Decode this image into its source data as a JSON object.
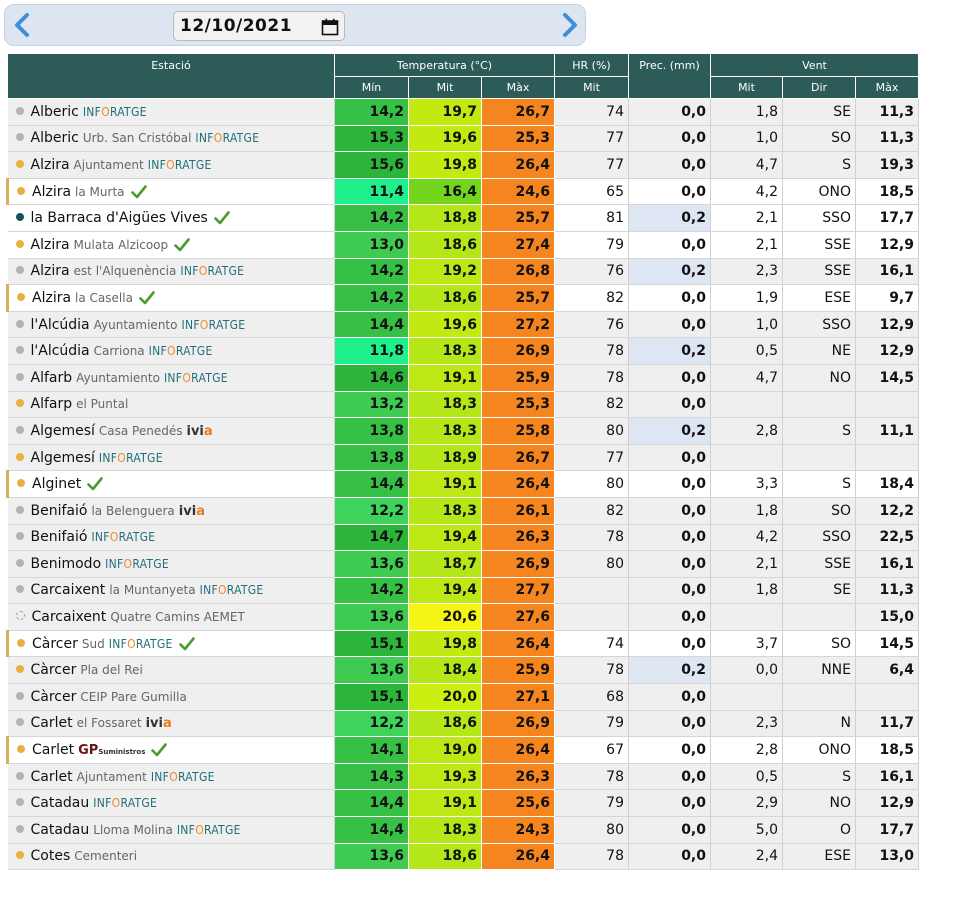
{
  "date_bar": {
    "date": "12/10/2021"
  },
  "headers": {
    "station": "Estació",
    "temperature": "Temperatura (°C)",
    "hr": "HR (%)",
    "prec": "Prec. (mm)",
    "wind": "Vent",
    "sub": {
      "t_min": "Mín",
      "t_mit": "Mit",
      "t_max": "Màx",
      "hr_mit": "Mit",
      "w_mit": "Mit",
      "w_dir": "Dir",
      "w_max": "Màx"
    }
  },
  "colors": {
    "header_bg": "#2d5b57",
    "max_temp": "#f5861f",
    "rain_cell": "#dfe6f3",
    "dot_gray": "#b3b3b3",
    "dot_orange": "#eab043",
    "dot_teal": "#17545a"
  },
  "rows": [
    {
      "station": "Alberic",
      "sub": "",
      "logo": "inforatge",
      "dot": "gray",
      "check": false,
      "hl": false,
      "bg": "gray",
      "tmin": "14,2",
      "tmit": "19,7",
      "tmax": "26,7",
      "hr": "74",
      "prec": "0,0",
      "rain": false,
      "wmit": "1,8",
      "wdir": "SE",
      "wmax": "11,3",
      "minColor": "#36c046",
      "mitColor": "#c2ea10"
    },
    {
      "station": "Alberic",
      "sub": "Urb. San Cristóbal",
      "logo": "inforatge",
      "dot": "gray",
      "check": false,
      "hl": false,
      "bg": "gray",
      "tmin": "15,3",
      "tmit": "19,6",
      "tmax": "25,3",
      "hr": "77",
      "prec": "0,0",
      "rain": false,
      "wmit": "1,0",
      "wdir": "SO",
      "wmax": "11,3",
      "minColor": "#2bb63b",
      "mitColor": "#c2ea10"
    },
    {
      "station": "Alzira",
      "sub": "Ajuntament",
      "logo": "inforatge",
      "dot": "orange",
      "check": false,
      "hl": false,
      "bg": "gray",
      "tmin": "15,6",
      "tmit": "19,8",
      "tmax": "26,4",
      "hr": "77",
      "prec": "0,0",
      "rain": false,
      "wmit": "4,7",
      "wdir": "S",
      "wmax": "19,3",
      "minColor": "#2bb63b",
      "mitColor": "#c2ea10"
    },
    {
      "station": "Alzira",
      "sub": "la Murta",
      "logo": "",
      "dot": "orange",
      "check": true,
      "hl": true,
      "bg": "white",
      "tmin": "11,4",
      "tmit": "16,4",
      "tmax": "24,6",
      "hr": "65",
      "prec": "0,0",
      "rain": false,
      "wmit": "4,2",
      "wdir": "ONO",
      "wmax": "18,5",
      "minColor": "#1ef08c",
      "mitColor": "#74d51d"
    },
    {
      "station": "la Barraca d'Aigües Vives",
      "sub": "",
      "logo": "",
      "dot": "teal",
      "check": true,
      "hl": false,
      "bg": "white",
      "tmin": "14,2",
      "tmit": "18,8",
      "tmax": "25,7",
      "hr": "81",
      "prec": "0,2",
      "rain": true,
      "wmit": "2,1",
      "wdir": "SSO",
      "wmax": "17,7",
      "minColor": "#36c046",
      "mitColor": "#b5e617"
    },
    {
      "station": "Alzira",
      "sub": "Mulata Alzicoop",
      "logo": "",
      "dot": "orange",
      "check": true,
      "hl": false,
      "bg": "white",
      "tmin": "13,0",
      "tmit": "18,6",
      "tmax": "27,4",
      "hr": "79",
      "prec": "0,0",
      "rain": false,
      "wmit": "2,1",
      "wdir": "SSE",
      "wmax": "12,9",
      "minColor": "#3fca51",
      "mitColor": "#b5e617"
    },
    {
      "station": "Alzira",
      "sub": "est l'Alquenència",
      "logo": "inforatge",
      "dot": "gray",
      "check": false,
      "hl": false,
      "bg": "gray",
      "tmin": "14,2",
      "tmit": "19,2",
      "tmax": "26,8",
      "hr": "76",
      "prec": "0,2",
      "rain": true,
      "wmit": "2,3",
      "wdir": "SSE",
      "wmax": "16,1",
      "minColor": "#36c046",
      "mitColor": "#bde814"
    },
    {
      "station": "Alzira",
      "sub": "la Casella",
      "logo": "",
      "dot": "orange",
      "check": true,
      "hl": true,
      "bg": "white",
      "tmin": "14,2",
      "tmit": "18,6",
      "tmax": "25,7",
      "hr": "82",
      "prec": "0,0",
      "rain": false,
      "wmit": "1,9",
      "wdir": "ESE",
      "wmax": "9,7",
      "minColor": "#36c046",
      "mitColor": "#b5e617"
    },
    {
      "station": "l'Alcúdia",
      "sub": "Ayuntamiento",
      "logo": "inforatge",
      "dot": "gray",
      "check": false,
      "hl": false,
      "bg": "gray",
      "tmin": "14,4",
      "tmit": "19,6",
      "tmax": "27,2",
      "hr": "76",
      "prec": "0,0",
      "rain": false,
      "wmit": "1,0",
      "wdir": "SSO",
      "wmax": "12,9",
      "minColor": "#36c046",
      "mitColor": "#c2ea10"
    },
    {
      "station": "l'Alcúdia",
      "sub": "Carriona",
      "logo": "inforatge",
      "dot": "gray",
      "check": false,
      "hl": false,
      "bg": "gray",
      "tmin": "11,8",
      "tmit": "18,3",
      "tmax": "26,9",
      "hr": "78",
      "prec": "0,2",
      "rain": true,
      "wmit": "0,5",
      "wdir": "NE",
      "wmax": "12,9",
      "minColor": "#1ef08c",
      "mitColor": "#b5e617"
    },
    {
      "station": "Alfarb",
      "sub": "Ayuntamiento",
      "logo": "inforatge",
      "dot": "gray",
      "check": false,
      "hl": false,
      "bg": "gray",
      "tmin": "14,6",
      "tmit": "19,1",
      "tmax": "25,9",
      "hr": "78",
      "prec": "0,0",
      "rain": false,
      "wmit": "4,7",
      "wdir": "NO",
      "wmax": "14,5",
      "minColor": "#2bb63b",
      "mitColor": "#bde814"
    },
    {
      "station": "Alfarp",
      "sub": "el Puntal",
      "logo": "",
      "dot": "orange",
      "check": false,
      "hl": false,
      "bg": "gray",
      "tmin": "13,2",
      "tmit": "18,3",
      "tmax": "25,3",
      "hr": "82",
      "prec": "0,0",
      "rain": false,
      "wmit": "",
      "wdir": "",
      "wmax": "",
      "minColor": "#3fca51",
      "mitColor": "#b5e617"
    },
    {
      "station": "Algemesí",
      "sub": "Casa Penedés",
      "logo": "ivia",
      "dot": "gray",
      "check": false,
      "hl": false,
      "bg": "gray",
      "tmin": "13,8",
      "tmit": "18,3",
      "tmax": "25,8",
      "hr": "80",
      "prec": "0,2",
      "rain": true,
      "wmit": "2,8",
      "wdir": "S",
      "wmax": "11,1",
      "minColor": "#36c046",
      "mitColor": "#b5e617"
    },
    {
      "station": "Algemesí",
      "sub": "",
      "logo": "inforatge",
      "dot": "orange",
      "check": false,
      "hl": false,
      "bg": "gray",
      "tmin": "13,8",
      "tmit": "18,9",
      "tmax": "26,7",
      "hr": "77",
      "prec": "0,0",
      "rain": false,
      "wmit": "",
      "wdir": "",
      "wmax": "",
      "minColor": "#36c046",
      "mitColor": "#b5e617"
    },
    {
      "station": "Alginet",
      "sub": "",
      "logo": "",
      "dot": "orange",
      "check": true,
      "hl": true,
      "bg": "white",
      "tmin": "14,4",
      "tmit": "19,1",
      "tmax": "26,4",
      "hr": "80",
      "prec": "0,0",
      "rain": false,
      "wmit": "3,3",
      "wdir": "S",
      "wmax": "18,4",
      "minColor": "#36c046",
      "mitColor": "#bde814"
    },
    {
      "station": "Benifaió",
      "sub": "la Belenguera",
      "logo": "ivia",
      "dot": "gray",
      "check": false,
      "hl": false,
      "bg": "gray",
      "tmin": "12,2",
      "tmit": "18,3",
      "tmax": "26,1",
      "hr": "82",
      "prec": "0,0",
      "rain": false,
      "wmit": "1,8",
      "wdir": "SO",
      "wmax": "12,2",
      "minColor": "#3fd25c",
      "mitColor": "#b5e617"
    },
    {
      "station": "Benifaió",
      "sub": "",
      "logo": "inforatge",
      "dot": "gray",
      "check": false,
      "hl": false,
      "bg": "gray",
      "tmin": "14,7",
      "tmit": "19,4",
      "tmax": "26,3",
      "hr": "78",
      "prec": "0,0",
      "rain": false,
      "wmit": "4,2",
      "wdir": "SSO",
      "wmax": "22,5",
      "minColor": "#2bb63b",
      "mitColor": "#bde814"
    },
    {
      "station": "Benimodo",
      "sub": "",
      "logo": "inforatge",
      "dot": "gray",
      "check": false,
      "hl": false,
      "bg": "gray",
      "tmin": "13,6",
      "tmit": "18,7",
      "tmax": "26,9",
      "hr": "80",
      "prec": "0,0",
      "rain": false,
      "wmit": "2,1",
      "wdir": "SSE",
      "wmax": "16,1",
      "minColor": "#3fca51",
      "mitColor": "#b5e617"
    },
    {
      "station": "Carcaixent",
      "sub": "la Muntanyeta",
      "logo": "inforatge",
      "dot": "gray",
      "check": false,
      "hl": false,
      "bg": "gray",
      "tmin": "14,2",
      "tmit": "19,4",
      "tmax": "27,7",
      "hr": "",
      "prec": "0,0",
      "rain": false,
      "wmit": "1,8",
      "wdir": "SE",
      "wmax": "11,3",
      "minColor": "#36c046",
      "mitColor": "#bde814"
    },
    {
      "station": "Carcaixent",
      "sub": "Quatre Camins AEMET",
      "logo": "",
      "dot": "hollow",
      "check": false,
      "hl": false,
      "bg": "gray",
      "tmin": "13,6",
      "tmit": "20,6",
      "tmax": "27,6",
      "hr": "",
      "prec": "0,0",
      "rain": false,
      "wmit": "",
      "wdir": "",
      "wmax": "15,0",
      "minColor": "#3fca51",
      "mitColor": "#f4f415"
    },
    {
      "station": "Càrcer",
      "sub": "Sud",
      "logo": "inforatge",
      "dot": "orange",
      "check": true,
      "hl": true,
      "bg": "white",
      "tmin": "15,1",
      "tmit": "19,8",
      "tmax": "26,4",
      "hr": "74",
      "prec": "0,0",
      "rain": false,
      "wmit": "3,7",
      "wdir": "SO",
      "wmax": "14,5",
      "minColor": "#2bb63b",
      "mitColor": "#c2ea10"
    },
    {
      "station": "Càrcer",
      "sub": "Pla del Rei",
      "logo": "",
      "dot": "orange",
      "check": false,
      "hl": false,
      "bg": "gray",
      "tmin": "13,6",
      "tmit": "18,4",
      "tmax": "25,9",
      "hr": "78",
      "prec": "0,2",
      "rain": true,
      "wmit": "0,0",
      "wdir": "NNE",
      "wmax": "6,4",
      "minColor": "#3fca51",
      "mitColor": "#b5e617"
    },
    {
      "station": "Càrcer",
      "sub": "CEIP Pare Gumilla",
      "logo": "",
      "dot": "gray",
      "check": false,
      "hl": false,
      "bg": "gray",
      "tmin": "15,1",
      "tmit": "20,0",
      "tmax": "27,1",
      "hr": "68",
      "prec": "0,0",
      "rain": false,
      "wmit": "",
      "wdir": "",
      "wmax": "",
      "minColor": "#2bb63b",
      "mitColor": "#ccee10"
    },
    {
      "station": "Carlet",
      "sub": "el Fossaret",
      "logo": "ivia",
      "dot": "gray",
      "check": false,
      "hl": false,
      "bg": "gray",
      "tmin": "12,2",
      "tmit": "18,6",
      "tmax": "26,9",
      "hr": "79",
      "prec": "0,0",
      "rain": false,
      "wmit": "2,3",
      "wdir": "N",
      "wmax": "11,7",
      "minColor": "#3fd25c",
      "mitColor": "#b5e617"
    },
    {
      "station": "Carlet",
      "sub": "",
      "logo": "gp",
      "dot": "orange",
      "check": true,
      "hl": true,
      "bg": "white",
      "tmin": "14,1",
      "tmit": "19,0",
      "tmax": "26,4",
      "hr": "67",
      "prec": "0,0",
      "rain": false,
      "wmit": "2,8",
      "wdir": "ONO",
      "wmax": "18,5",
      "minColor": "#36c046",
      "mitColor": "#bde814"
    },
    {
      "station": "Carlet",
      "sub": "Ajuntament",
      "logo": "inforatge",
      "dot": "gray",
      "check": false,
      "hl": false,
      "bg": "gray",
      "tmin": "14,3",
      "tmit": "19,3",
      "tmax": "26,3",
      "hr": "78",
      "prec": "0,0",
      "rain": false,
      "wmit": "0,5",
      "wdir": "S",
      "wmax": "16,1",
      "minColor": "#36c046",
      "mitColor": "#bde814"
    },
    {
      "station": "Catadau",
      "sub": "",
      "logo": "inforatge",
      "dot": "gray",
      "check": false,
      "hl": false,
      "bg": "gray",
      "tmin": "14,4",
      "tmit": "19,1",
      "tmax": "25,6",
      "hr": "79",
      "prec": "0,0",
      "rain": false,
      "wmit": "2,9",
      "wdir": "NO",
      "wmax": "12,9",
      "minColor": "#36c046",
      "mitColor": "#bde814"
    },
    {
      "station": "Catadau",
      "sub": "Lloma Molina",
      "logo": "inforatge",
      "dot": "gray",
      "check": false,
      "hl": false,
      "bg": "gray",
      "tmin": "14,4",
      "tmit": "18,3",
      "tmax": "24,3",
      "hr": "80",
      "prec": "0,0",
      "rain": false,
      "wmit": "5,0",
      "wdir": "O",
      "wmax": "17,7",
      "minColor": "#36c046",
      "mitColor": "#b5e617"
    },
    {
      "station": "Cotes",
      "sub": "Cementeri",
      "logo": "",
      "dot": "orange",
      "check": false,
      "hl": false,
      "bg": "gray",
      "tmin": "13,6",
      "tmit": "18,6",
      "tmax": "26,4",
      "hr": "78",
      "prec": "0,0",
      "rain": false,
      "wmit": "2,4",
      "wdir": "ESE",
      "wmax": "13,0",
      "minColor": "#3fca51",
      "mitColor": "#b5e617"
    }
  ]
}
